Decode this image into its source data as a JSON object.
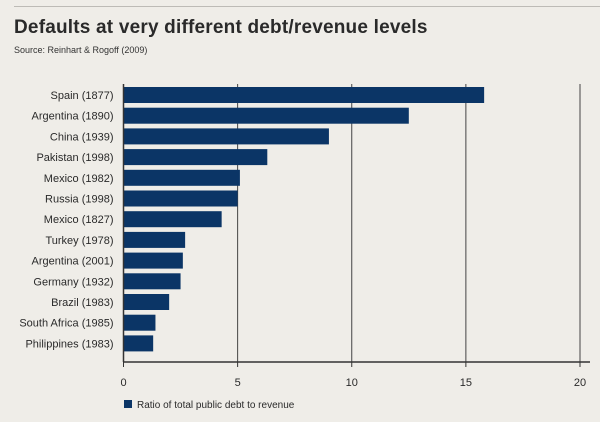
{
  "title": "Defaults at very different debt/revenue levels",
  "subtitle": "Source: Reinhart & Rogoff (2009)",
  "chart_data": {
    "type": "bar",
    "orientation": "horizontal",
    "categories": [
      "Spain (1877)",
      "Argentina (1890)",
      "China (1939)",
      "Pakistan (1998)",
      "Mexico (1982)",
      "Russia (1998)",
      "Mexico (1827)",
      "Turkey (1978)",
      "Argentina (2001)",
      "Germany (1932)",
      "Brazil (1983)",
      "South Africa (1985)",
      "Philippines (1983)"
    ],
    "series": [
      {
        "name": "Ratio of total public debt to revenue",
        "values": [
          15.8,
          12.5,
          9.0,
          6.3,
          5.1,
          5.0,
          4.3,
          2.7,
          2.6,
          2.5,
          2.0,
          1.4,
          1.3
        ],
        "color": "#0b3566"
      }
    ],
    "xlim": [
      0,
      20
    ],
    "xticks": [
      "0",
      "5",
      "10",
      "15",
      "20"
    ],
    "grid": "vertical",
    "legend": "bottom-left"
  }
}
